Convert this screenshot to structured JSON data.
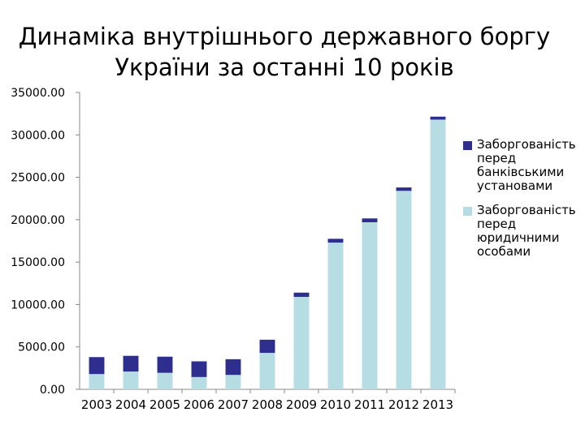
{
  "chart_data": {
    "type": "bar",
    "stacked": true,
    "title_line1": "Динаміка внутрішнього державного боргу",
    "title_line2": "України за останні 10 років",
    "categories": [
      "2003",
      "2004",
      "2005",
      "2006",
      "2007",
      "2008",
      "2009",
      "2010",
      "2011",
      "2012",
      "2013"
    ],
    "series": [
      {
        "name": "Заборгованість перед юридичними особами",
        "color": "#b7dde4",
        "values": [
          1800,
          2100,
          1950,
          1450,
          1700,
          4300,
          10900,
          17300,
          19700,
          23400,
          31800
        ]
      },
      {
        "name": "Заборгованість перед банківськими установами",
        "color": "#2e2e8e",
        "values": [
          2000,
          1850,
          1900,
          1850,
          1850,
          1550,
          500,
          450,
          450,
          400,
          350
        ]
      }
    ],
    "ylim": [
      0,
      35000
    ],
    "yticks": [
      "35000.00",
      "30000.00",
      "25000.00",
      "20000.00",
      "15000.00",
      "10000.00",
      "5000.00",
      "0.00"
    ],
    "legend_position": "right",
    "grid": false
  }
}
